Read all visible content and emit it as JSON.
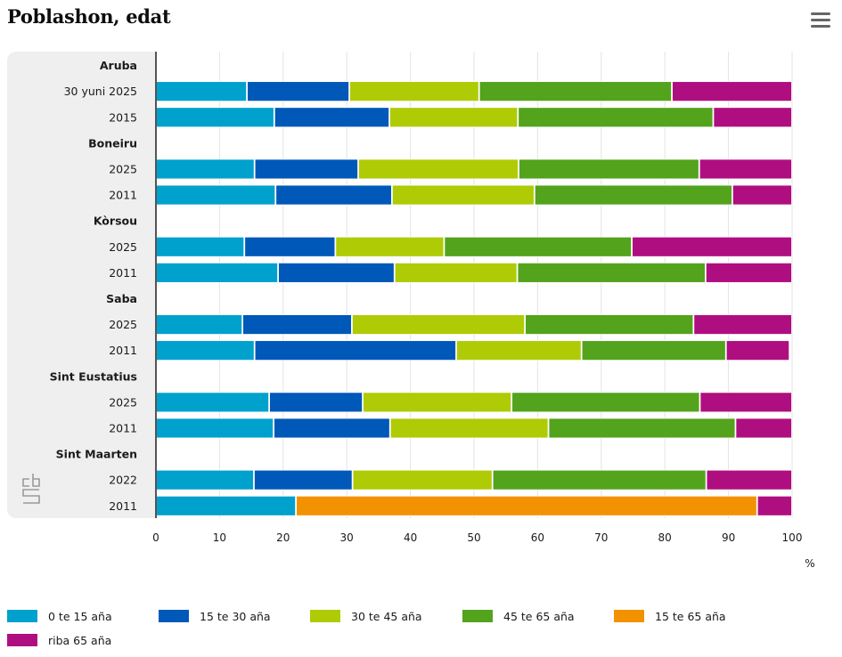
{
  "header": {
    "title": "Poblashon, edat",
    "menu_icon": "hamburger-menu-icon"
  },
  "logo": {
    "icon": "cbs-logo-icon"
  },
  "chart_data": {
    "type": "bar",
    "orientation": "horizontal",
    "stacked": true,
    "title": "Poblashon, edat",
    "xlabel": "%",
    "ylabel": "",
    "xlim": [
      0,
      100
    ],
    "x_ticks": [
      "0",
      "10",
      "20",
      "30",
      "40",
      "50",
      "60",
      "70",
      "80",
      "90",
      "100"
    ],
    "grid": true,
    "legend_position": "bottom",
    "rows": [
      {
        "label": "Aruba",
        "group": true
      },
      {
        "label": "30 yuni 2025",
        "group": false,
        "values": [
          14.3,
          16.1,
          20.4,
          30.3,
          null,
          18.9
        ]
      },
      {
        "label": "2015",
        "group": false,
        "values": [
          18.6,
          18.1,
          20.2,
          30.7,
          null,
          12.4
        ]
      },
      {
        "label": "Boneiru",
        "group": true
      },
      {
        "label": "2025",
        "group": false,
        "values": [
          15.5,
          16.3,
          25.2,
          28.4,
          null,
          14.6
        ]
      },
      {
        "label": "2011",
        "group": false,
        "values": [
          18.8,
          18.3,
          22.4,
          31.1,
          null,
          9.4
        ]
      },
      {
        "label": "Kòrsou",
        "group": true
      },
      {
        "label": "2025",
        "group": false,
        "values": [
          13.9,
          14.3,
          17.1,
          29.5,
          null,
          25.2
        ]
      },
      {
        "label": "2011",
        "group": false,
        "values": [
          19.2,
          18.3,
          19.3,
          29.6,
          null,
          13.6
        ]
      },
      {
        "label": "Saba",
        "group": true
      },
      {
        "label": "2025",
        "group": false,
        "values": [
          13.6,
          17.2,
          27.2,
          26.5,
          null,
          15.5
        ]
      },
      {
        "label": "2011",
        "group": false,
        "values": [
          15.5,
          31.7,
          19.7,
          22.7,
          null,
          10.0
        ]
      },
      {
        "label": "Sint Eustatius",
        "group": true
      },
      {
        "label": "2025",
        "group": false,
        "values": [
          17.8,
          14.7,
          23.4,
          29.6,
          null,
          14.5
        ]
      },
      {
        "label": "2011",
        "group": false,
        "values": [
          18.5,
          18.3,
          24.9,
          29.4,
          null,
          8.9
        ]
      },
      {
        "label": "Sint Maarten",
        "group": true
      },
      {
        "label": "2022",
        "group": false,
        "values": [
          15.4,
          15.5,
          22.0,
          33.6,
          null,
          13.5
        ]
      },
      {
        "label": "2011",
        "group": false,
        "values": [
          22.0,
          null,
          null,
          null,
          72.5,
          5.5
        ]
      }
    ],
    "series": [
      {
        "name": "0 te 15 aña",
        "color": "#00a1cd"
      },
      {
        "name": "15 te 30 aña",
        "color": "#0058b8"
      },
      {
        "name": "30 te 45 aña",
        "color": "#afcb05"
      },
      {
        "name": "45 te 65 aña",
        "color": "#53a31d"
      },
      {
        "name": "15 te 65 aña",
        "color": "#f39200"
      },
      {
        "name": "riba 65 aña",
        "color": "#af0e80"
      }
    ]
  }
}
